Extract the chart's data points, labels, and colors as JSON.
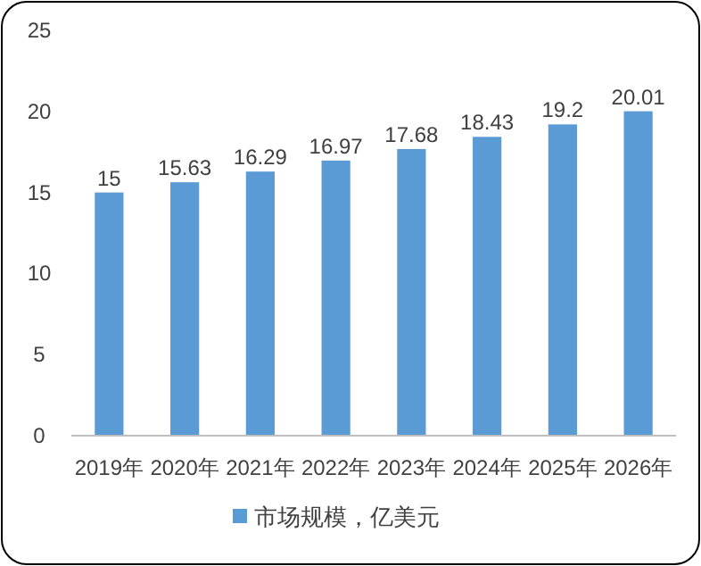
{
  "chart_data": {
    "type": "bar",
    "categories": [
      "2019年",
      "2020年",
      "2021年",
      "2022年",
      "2023年",
      "2024年",
      "2025年",
      "2026年"
    ],
    "series": [
      {
        "name": "市场规模，亿美元",
        "color": "#5b9bd5",
        "values": [
          15,
          15.63,
          16.29,
          16.97,
          17.68,
          18.43,
          19.2,
          20.01
        ]
      }
    ],
    "ylim": [
      0,
      25
    ],
    "yticks": [
      0,
      5,
      10,
      15,
      20,
      25
    ],
    "grid": false,
    "data_labels": true,
    "legend": "bottom"
  }
}
